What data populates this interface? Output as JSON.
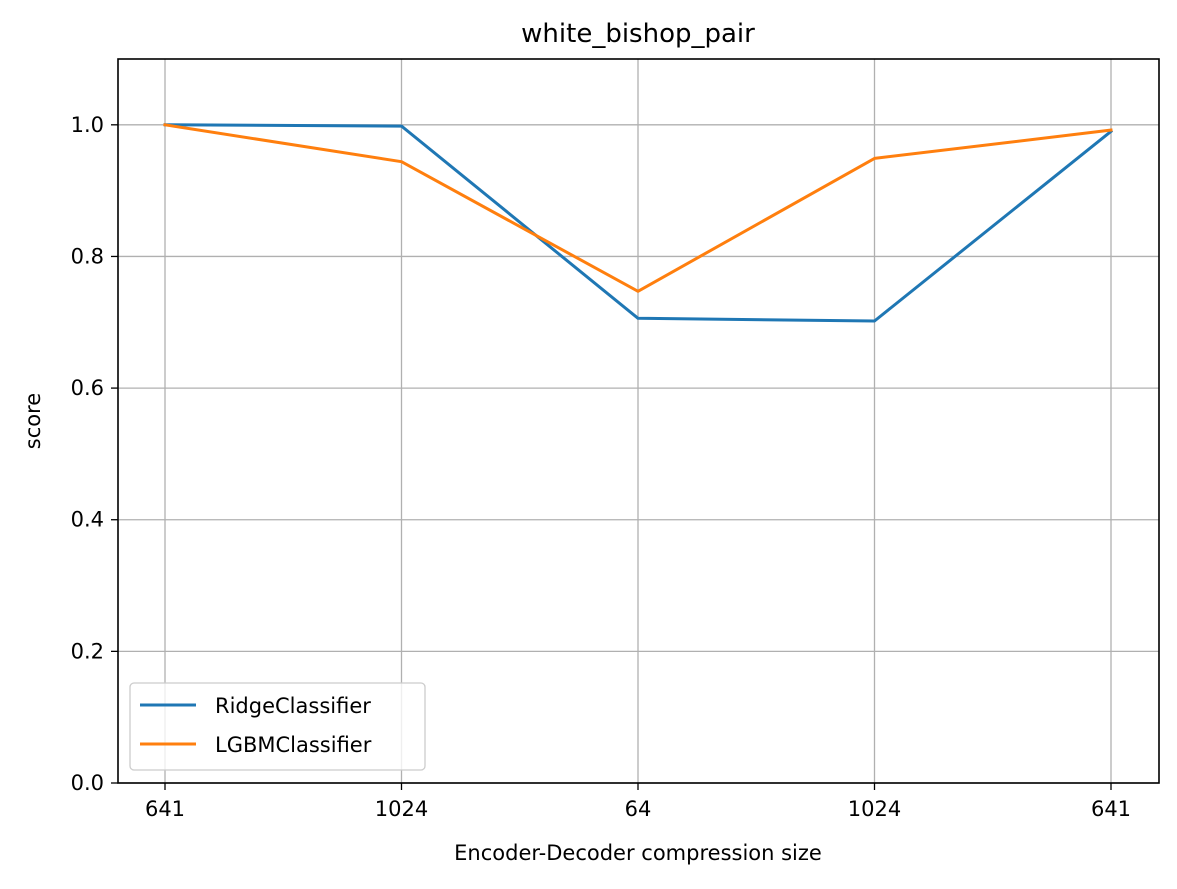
{
  "chart_data": {
    "type": "line",
    "title": "white_bishop_pair",
    "xlabel": "Encoder-Decoder compression size",
    "ylabel": "score",
    "categories": [
      "641",
      "1024",
      "64",
      "1024",
      "641"
    ],
    "ylim": [
      0.0,
      1.1
    ],
    "yticks": [
      "0.0",
      "0.2",
      "0.4",
      "0.6",
      "0.8",
      "1.0"
    ],
    "grid": true,
    "legend_position": "lower-left",
    "series": [
      {
        "name": "RidgeClassifier",
        "color": "#1f77b4",
        "values": [
          1.0,
          0.998,
          0.706,
          0.702,
          0.99
        ]
      },
      {
        "name": "LGBMClassifier",
        "color": "#ff7f0e",
        "values": [
          1.0,
          0.944,
          0.747,
          0.949,
          0.992
        ]
      }
    ]
  }
}
